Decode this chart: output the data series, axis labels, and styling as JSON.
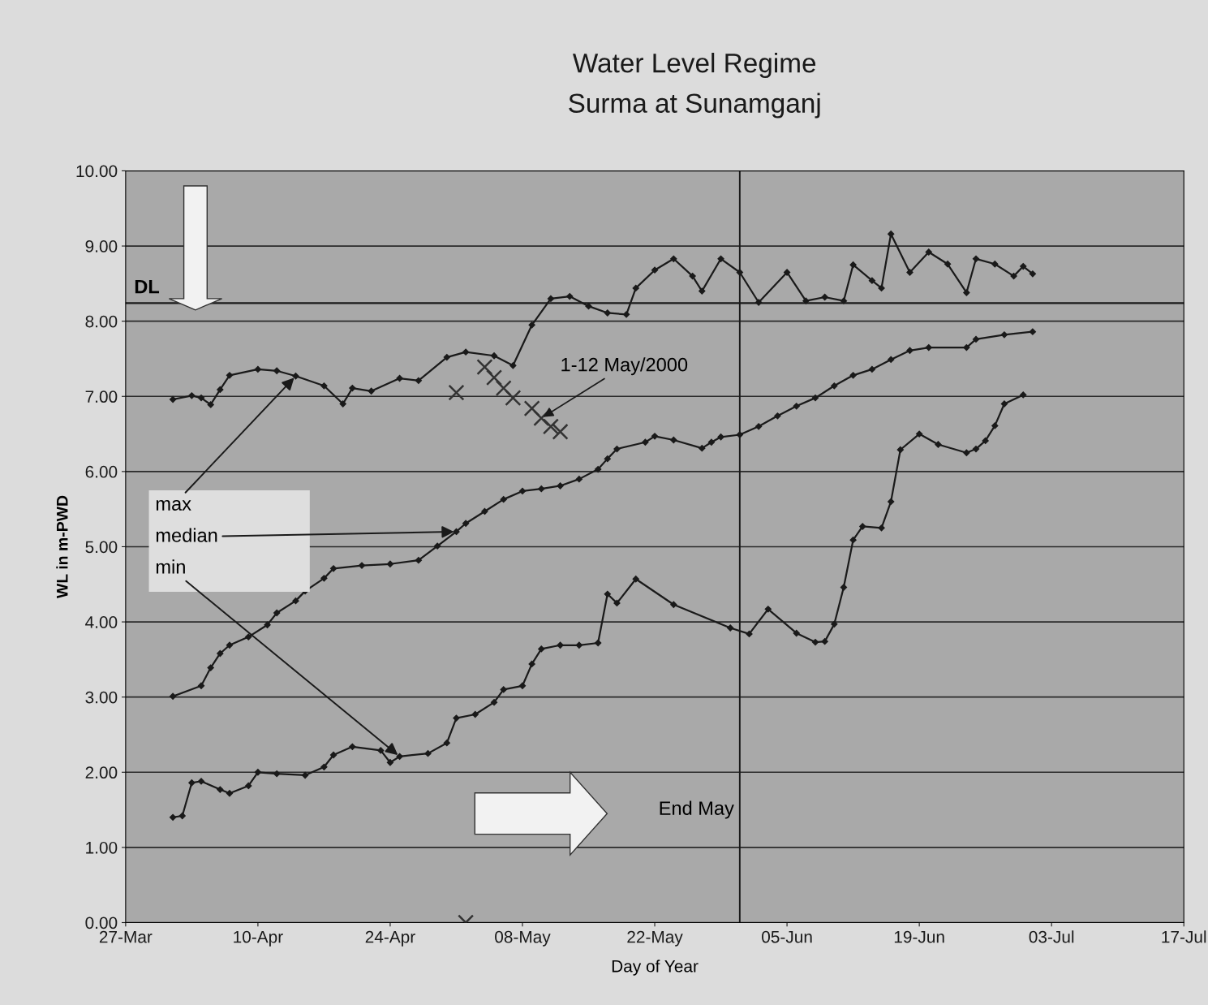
{
  "chart_data": {
    "type": "line",
    "title": "Water Level Regime",
    "subtitle": "Surma at Sunamganj",
    "xlabel": "Day of Year",
    "ylabel": "WL in m-PWD",
    "xlim": [
      "2000-03-27",
      "2000-07-17"
    ],
    "xticks": [
      {
        "value": "2000-03-27",
        "label": "27-Mar"
      },
      {
        "value": "2000-04-10",
        "label": "10-Apr"
      },
      {
        "value": "2000-04-24",
        "label": "24-Apr"
      },
      {
        "value": "2000-05-08",
        "label": "08-May"
      },
      {
        "value": "2000-05-22",
        "label": "22-May"
      },
      {
        "value": "2000-06-05",
        "label": "05-Jun"
      },
      {
        "value": "2000-06-19",
        "label": "19-Jun"
      },
      {
        "value": "2000-07-03",
        "label": "03-Jul"
      },
      {
        "value": "2000-07-17",
        "label": "17-Jul"
      }
    ],
    "ylim": [
      0,
      10
    ],
    "yticks": [
      {
        "value": 0,
        "label": "0.00"
      },
      {
        "value": 1,
        "label": "1.00"
      },
      {
        "value": 2,
        "label": "2.00"
      },
      {
        "value": 3,
        "label": "3.00"
      },
      {
        "value": 4,
        "label": "4.00"
      },
      {
        "value": 5,
        "label": "5.00"
      },
      {
        "value": 6,
        "label": "6.00"
      },
      {
        "value": 7,
        "label": "7.00"
      },
      {
        "value": 8,
        "label": "8.00"
      },
      {
        "value": 9,
        "label": "9.00"
      },
      {
        "value": 10,
        "label": "10.00"
      }
    ],
    "grid": "y",
    "legend": false,
    "marker": "diamond",
    "line_style": "solid",
    "series": [
      {
        "name": "max",
        "color": "#1a1a1a",
        "x": [
          "2000-04-01",
          "2000-04-03",
          "2000-04-04",
          "2000-04-05",
          "2000-04-06",
          "2000-04-07",
          "2000-04-10",
          "2000-04-12",
          "2000-04-14",
          "2000-04-17",
          "2000-04-19",
          "2000-04-20",
          "2000-04-22",
          "2000-04-25",
          "2000-04-27",
          "2000-04-30",
          "2000-05-02",
          "2000-05-05",
          "2000-05-07",
          "2000-05-09",
          "2000-05-11",
          "2000-05-13",
          "2000-05-15",
          "2000-05-17",
          "2000-05-19",
          "2000-05-20",
          "2000-05-22",
          "2000-05-24",
          "2000-05-26",
          "2000-05-27",
          "2000-05-29",
          "2000-05-31",
          "2000-06-02",
          "2000-06-05",
          "2000-06-07",
          "2000-06-09",
          "2000-06-11",
          "2000-06-12",
          "2000-06-14",
          "2000-06-15",
          "2000-06-16",
          "2000-06-18",
          "2000-06-20",
          "2000-06-22",
          "2000-06-24",
          "2000-06-25",
          "2000-06-27",
          "2000-06-29",
          "2000-06-30",
          "2000-07-01"
        ],
        "values": [
          6.96,
          7.01,
          6.98,
          6.89,
          7.09,
          7.28,
          7.36,
          7.34,
          7.27,
          7.14,
          6.9,
          7.11,
          7.07,
          7.24,
          7.21,
          7.52,
          7.59,
          7.54,
          7.41,
          7.95,
          8.3,
          8.33,
          8.2,
          8.11,
          8.09,
          8.44,
          8.68,
          8.83,
          8.6,
          8.4,
          8.83,
          8.65,
          8.25,
          8.65,
          8.27,
          8.32,
          8.27,
          8.75,
          8.54,
          8.44,
          9.16,
          8.65,
          8.92,
          8.76,
          8.38,
          8.83,
          8.76,
          8.6,
          8.73,
          8.63
        ]
      },
      {
        "name": "median",
        "color": "#1a1a1a",
        "x": [
          "2000-04-01",
          "2000-04-04",
          "2000-04-05",
          "2000-04-06",
          "2000-04-07",
          "2000-04-09",
          "2000-04-11",
          "2000-04-12",
          "2000-04-14",
          "2000-04-15",
          "2000-04-17",
          "2000-04-18",
          "2000-04-21",
          "2000-04-24",
          "2000-04-27",
          "2000-04-29",
          "2000-05-01",
          "2000-05-02",
          "2000-05-04",
          "2000-05-06",
          "2000-05-08",
          "2000-05-10",
          "2000-05-12",
          "2000-05-14",
          "2000-05-16",
          "2000-05-17",
          "2000-05-18",
          "2000-05-21",
          "2000-05-22",
          "2000-05-24",
          "2000-05-27",
          "2000-05-28",
          "2000-05-29",
          "2000-05-31",
          "2000-06-02",
          "2000-06-04",
          "2000-06-06",
          "2000-06-08",
          "2000-06-10",
          "2000-06-12",
          "2000-06-14",
          "2000-06-16",
          "2000-06-18",
          "2000-06-20",
          "2000-06-24",
          "2000-06-25",
          "2000-06-28",
          "2000-07-01"
        ],
        "values": [
          3.01,
          3.15,
          3.39,
          3.58,
          3.69,
          3.8,
          3.96,
          4.12,
          4.28,
          4.41,
          4.58,
          4.71,
          4.75,
          4.77,
          4.82,
          5.01,
          5.2,
          5.31,
          5.47,
          5.63,
          5.74,
          5.77,
          5.81,
          5.9,
          6.03,
          6.17,
          6.3,
          6.39,
          6.47,
          6.42,
          6.31,
          6.39,
          6.46,
          6.49,
          6.6,
          6.74,
          6.87,
          6.98,
          7.14,
          7.28,
          7.36,
          7.49,
          7.61,
          7.65,
          7.65,
          7.76,
          7.82,
          7.86
        ]
      },
      {
        "name": "min",
        "color": "#1a1a1a",
        "x": [
          "2000-04-01",
          "2000-04-02",
          "2000-04-03",
          "2000-04-04",
          "2000-04-06",
          "2000-04-07",
          "2000-04-09",
          "2000-04-10",
          "2000-04-12",
          "2000-04-15",
          "2000-04-17",
          "2000-04-18",
          "2000-04-20",
          "2000-04-23",
          "2000-04-24",
          "2000-04-25",
          "2000-04-28",
          "2000-04-30",
          "2000-05-01",
          "2000-05-03",
          "2000-05-05",
          "2000-05-06",
          "2000-05-08",
          "2000-05-09",
          "2000-05-10",
          "2000-05-12",
          "2000-05-14",
          "2000-05-16",
          "2000-05-17",
          "2000-05-18",
          "2000-05-20",
          "2000-05-24",
          "2000-05-30",
          "2000-06-01",
          "2000-06-03",
          "2000-06-06",
          "2000-06-08",
          "2000-06-09",
          "2000-06-10",
          "2000-06-11",
          "2000-06-12",
          "2000-06-13",
          "2000-06-15",
          "2000-06-16",
          "2000-06-17",
          "2000-06-19",
          "2000-06-21",
          "2000-06-24",
          "2000-06-25",
          "2000-06-26",
          "2000-06-27",
          "2000-06-28",
          "2000-06-30"
        ],
        "values": [
          1.4,
          1.42,
          1.86,
          1.88,
          1.77,
          1.72,
          1.82,
          2.0,
          1.98,
          1.96,
          2.07,
          2.23,
          2.34,
          2.29,
          2.13,
          2.21,
          2.25,
          2.39,
          2.72,
          2.77,
          2.93,
          3.1,
          3.15,
          3.44,
          3.64,
          3.69,
          3.69,
          3.72,
          4.37,
          4.25,
          4.57,
          4.23,
          3.92,
          3.84,
          4.17,
          3.85,
          3.73,
          3.74,
          3.97,
          4.46,
          5.09,
          5.27,
          5.25,
          5.6,
          6.29,
          6.5,
          6.36,
          6.25,
          6.3,
          6.41,
          6.61,
          6.9,
          7.02
        ]
      },
      {
        "name": "1-12 May/2000",
        "color": "#333333",
        "type": "scatter",
        "marker": "cross",
        "x": [
          "2000-05-01",
          "2000-05-02",
          "2000-05-04",
          "2000-05-05",
          "2000-05-06",
          "2000-05-07",
          "2000-05-09",
          "2000-05-10",
          "2000-05-11",
          "2000-05-12"
        ],
        "values": [
          7.05,
          0,
          7.39,
          7.25,
          7.11,
          6.98,
          6.84,
          6.71,
          6.6,
          6.53
        ]
      }
    ],
    "ref_lines": [
      {
        "axis": "y",
        "value": 8.24,
        "label": "DL",
        "color": "#1a1a1a"
      },
      {
        "axis": "x",
        "value": "2000-05-31",
        "label": "End May",
        "color": "#1a1a1a"
      }
    ]
  }
}
